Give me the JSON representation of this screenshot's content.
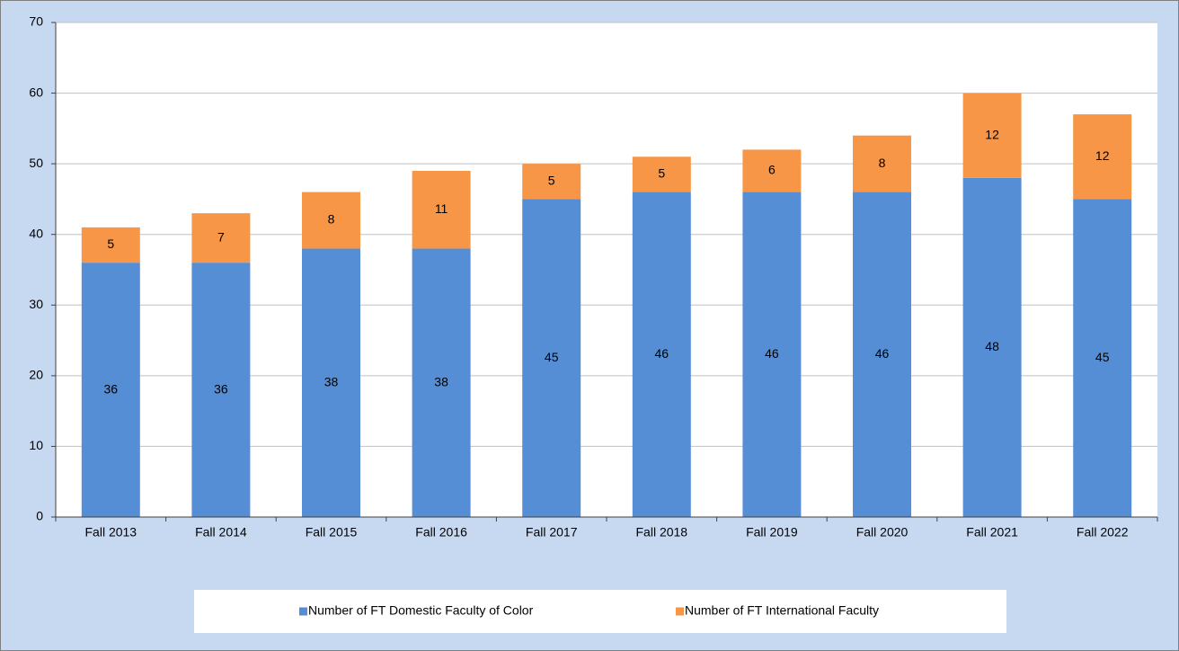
{
  "chart_data": {
    "type": "bar",
    "stacked": true,
    "categories": [
      "Fall 2013",
      "Fall 2014",
      "Fall 2015",
      "Fall 2016",
      "Fall 2017",
      "Fall 2018",
      "Fall 2019",
      "Fall 2020",
      "Fall 2021",
      "Fall 2022"
    ],
    "series": [
      {
        "name": "Number of FT Domestic Faculty of Color",
        "color": "#558ed5",
        "values": [
          36,
          36,
          38,
          38,
          45,
          46,
          46,
          46,
          48,
          45
        ]
      },
      {
        "name": "Number of FT International Faculty",
        "color": "#f79646",
        "values": [
          5,
          7,
          8,
          11,
          5,
          5,
          6,
          8,
          12,
          12
        ]
      }
    ],
    "ylim": [
      0,
      70
    ],
    "yticks": [
      0,
      10,
      20,
      30,
      40,
      50,
      60,
      70
    ],
    "grid": true,
    "legend": "bottom",
    "data_labels": true
  }
}
